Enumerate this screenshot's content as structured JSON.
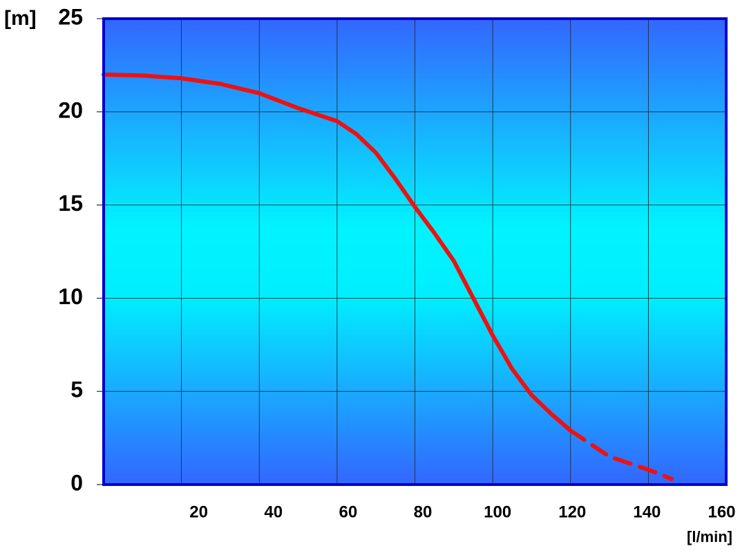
{
  "chart_data": {
    "type": "line",
    "y_label": "[m]",
    "x_label": "[l/min]",
    "x": [
      0,
      10,
      20,
      30,
      40,
      50,
      60,
      65,
      70,
      75,
      80,
      85,
      90,
      95,
      100,
      105,
      110,
      115,
      120,
      130,
      140,
      146
    ],
    "series": [
      {
        "color": "#ee1111",
        "values": [
          22.0,
          21.95,
          21.8,
          21.5,
          21.0,
          20.2,
          19.5,
          18.8,
          17.8,
          16.4,
          14.9,
          13.5,
          12.0,
          10.0,
          8.0,
          6.2,
          4.8,
          3.8,
          2.9,
          null,
          null,
          null
        ]
      },
      {
        "color": "#ee1111",
        "dashed": true,
        "values": [
          null,
          null,
          null,
          null,
          null,
          null,
          null,
          null,
          null,
          null,
          null,
          null,
          null,
          null,
          null,
          null,
          null,
          null,
          2.9,
          1.5,
          0.8,
          0.3
        ]
      }
    ],
    "xlim": [
      0,
      160
    ],
    "ylim": [
      0,
      25
    ],
    "xticks": [
      20,
      40,
      60,
      80,
      100,
      120,
      140,
      160
    ],
    "yticks": [
      0,
      5,
      10,
      15,
      20,
      25
    ],
    "grid": true
  }
}
